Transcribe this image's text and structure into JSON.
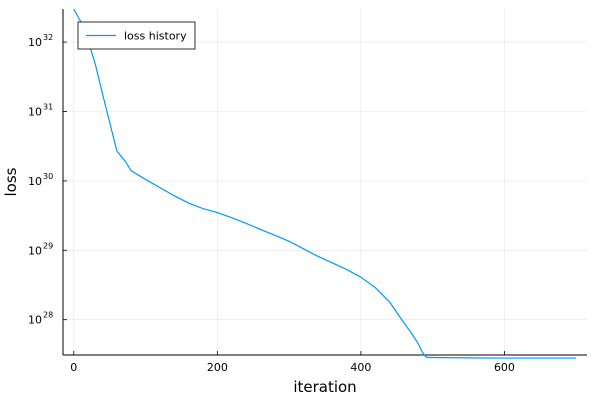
{
  "chart_data": {
    "type": "line",
    "xlabel": "iteration",
    "ylabel": "loss",
    "xlim": [
      -15,
      715
    ],
    "ylim": [
      3.1e+27,
      3e+32
    ],
    "yscale": "log",
    "x_ticks": [
      0,
      200,
      400,
      600
    ],
    "y_ticks": [
      {
        "value": 1e+28,
        "base": "10",
        "exp": "28"
      },
      {
        "value": 1e+29,
        "base": "10",
        "exp": "29"
      },
      {
        "value": 1e+30,
        "base": "10",
        "exp": "30"
      },
      {
        "value": 1e+31,
        "base": "10",
        "exp": "31"
      },
      {
        "value": 1e+32,
        "base": "10",
        "exp": "32"
      }
    ],
    "grid": true,
    "legend_position": "top-left",
    "colors": {
      "series": "#009af9"
    },
    "series": [
      {
        "name": "loss history",
        "x": [
          0,
          10,
          20,
          30,
          40,
          50,
          60,
          72,
          80,
          100,
          120,
          140,
          160,
          180,
          200,
          220,
          240,
          260,
          280,
          300,
          320,
          340,
          360,
          380,
          400,
          420,
          440,
          460,
          470,
          480,
          485,
          490,
          493,
          500,
          550,
          600,
          650,
          700
        ],
        "y": [
          3e+32,
          1.95e+32,
          1.05e+32,
          4.8e+31,
          1.8e+31,
          7e+30,
          2.7e+30,
          1.9e+30,
          1.4e+30,
          1.05e+30,
          8e+29,
          6.1e+29,
          4.8e+29,
          4e+29,
          3.5e+29,
          2.95e+29,
          2.45e+29,
          2e+29,
          1.65e+29,
          1.35e+29,
          1.05e+29,
          8.2e+28,
          6.6e+28,
          5.3e+28,
          4.1e+28,
          2.9e+28,
          1.8e+28,
          9e+27,
          6.5e+27,
          4.5e+27,
          3.5e+27,
          2.95e+27,
          2.85e+27,
          2.85e+27,
          2.82e+27,
          2.8e+27,
          2.8e+27,
          2.8e+27
        ]
      }
    ]
  }
}
